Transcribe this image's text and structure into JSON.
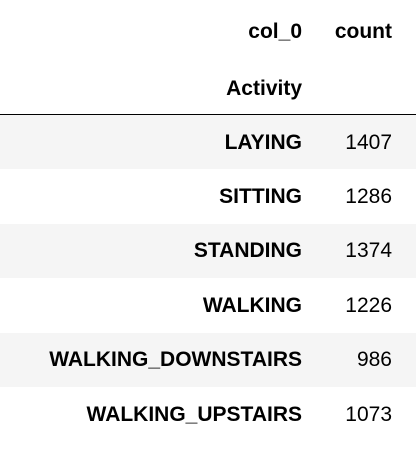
{
  "table": {
    "columns_level": "col_0",
    "value_column": "count",
    "index_name": "Activity",
    "rows": [
      {
        "label": "LAYING",
        "count": "1407"
      },
      {
        "label": "SITTING",
        "count": "1286"
      },
      {
        "label": "STANDING",
        "count": "1374"
      },
      {
        "label": "WALKING",
        "count": "1226"
      },
      {
        "label": "WALKING_DOWNSTAIRS",
        "count": "986"
      },
      {
        "label": "WALKING_UPSTAIRS",
        "count": "1073"
      }
    ]
  },
  "chart_data": {
    "type": "table",
    "columns": [
      "col_0",
      "count"
    ],
    "index_name": "Activity",
    "categories": [
      "LAYING",
      "SITTING",
      "STANDING",
      "WALKING",
      "WALKING_DOWNSTAIRS",
      "WALKING_UPSTAIRS"
    ],
    "values": [
      1407,
      1286,
      1374,
      1226,
      986,
      1073
    ]
  },
  "colors": {
    "row_stripe": "#f5f5f5",
    "background": "#ffffff",
    "text": "#000000",
    "rule": "#000000"
  }
}
